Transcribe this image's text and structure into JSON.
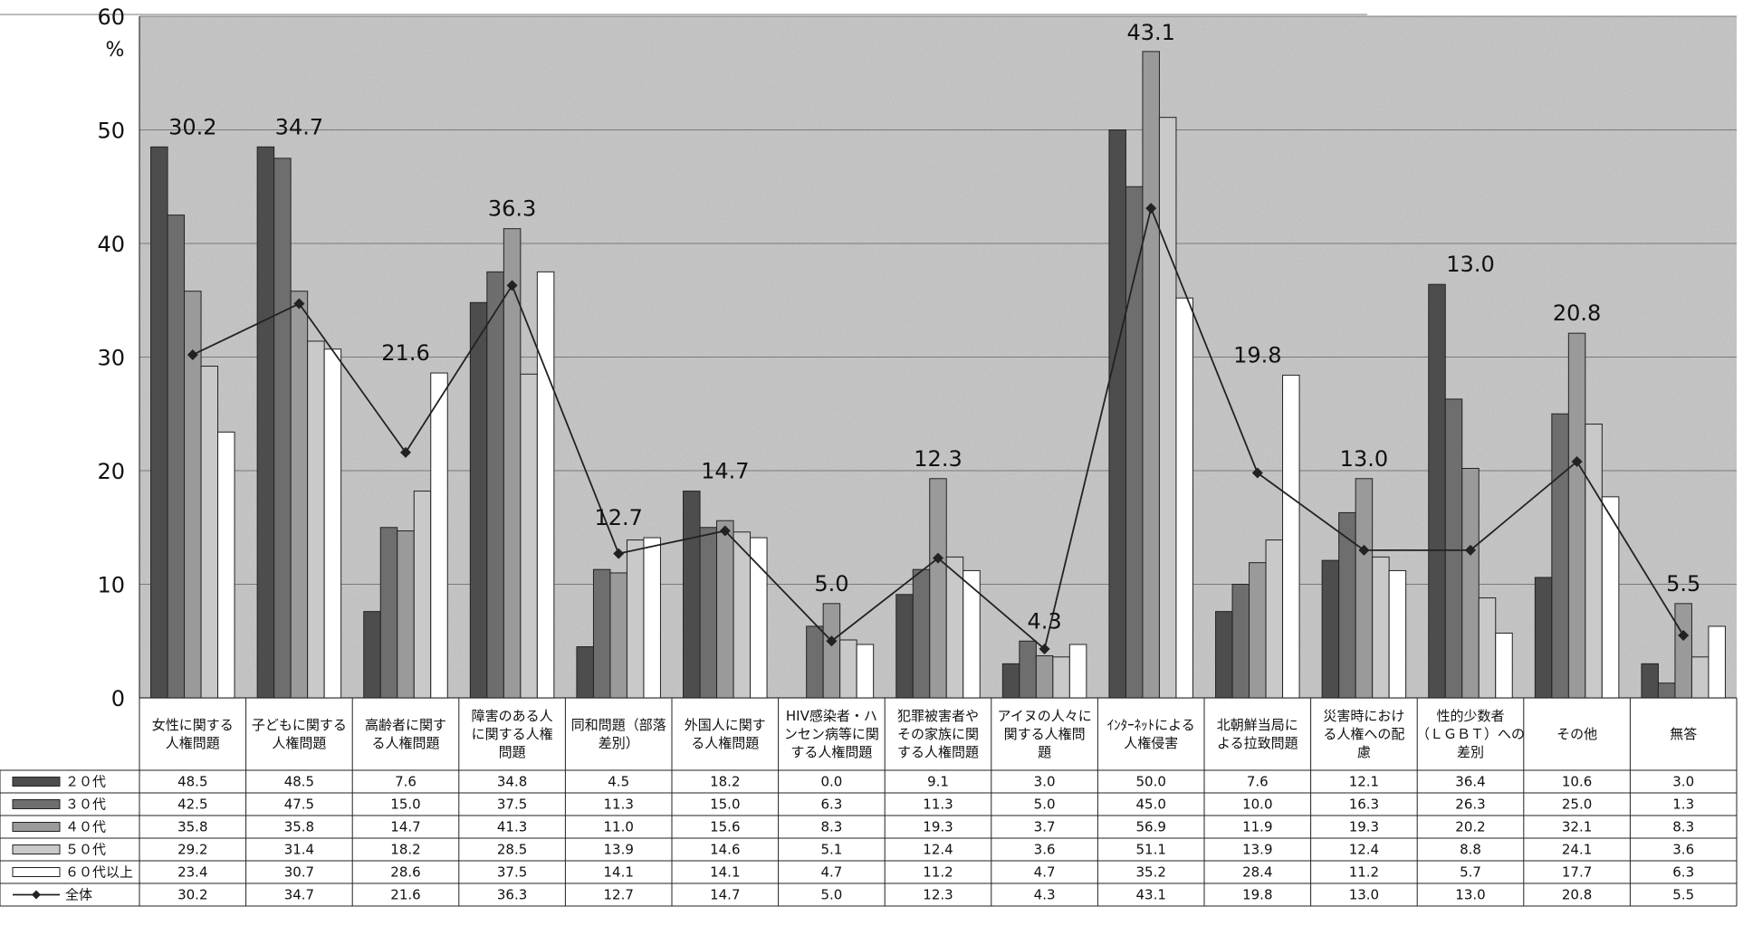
{
  "chart_data": {
    "type": "bar",
    "unit_label": "%",
    "ylim": [
      0,
      60
    ],
    "yticks": [
      0,
      10,
      20,
      30,
      40,
      50,
      60
    ],
    "grid": true,
    "legend_placement": "data-table-left",
    "categories": [
      [
        "女性に関する",
        "人権問題"
      ],
      [
        "子どもに関する",
        "人権問題"
      ],
      [
        "高齢者に関す",
        "る人権問題"
      ],
      [
        "障害のある人",
        "に関する人権",
        "問題"
      ],
      [
        "同和問題（部落",
        "差別）"
      ],
      [
        "外国人に関す",
        "る人権問題"
      ],
      [
        "HIV感染者・ハ",
        "ンセン病等に関",
        "する人権問題"
      ],
      [
        "犯罪被害者や",
        "その家族に関",
        "する人権問題"
      ],
      [
        "アイヌの人々に",
        "関する人権問",
        "題"
      ],
      [
        "ｲﾝﾀｰﾈｯﾄによる",
        "人権侵害"
      ],
      [
        "北朝鮮当局に",
        "よる拉致問題"
      ],
      [
        "災害時におけ",
        "る人権への配",
        "慮"
      ],
      [
        "性的少数者",
        "（ＬＧＢＴ）への",
        "差別"
      ],
      [
        "その他"
      ],
      [
        "無答"
      ]
    ],
    "series": [
      {
        "name": "２０代",
        "color": "#4d4d4d",
        "values": [
          48.5,
          48.5,
          7.6,
          34.8,
          4.5,
          18.2,
          0.0,
          9.1,
          3.0,
          50.0,
          7.6,
          12.1,
          36.4,
          10.6,
          3.0
        ]
      },
      {
        "name": "３０代",
        "color": "#6e6e6e",
        "values": [
          42.5,
          47.5,
          15.0,
          37.5,
          11.3,
          15.0,
          6.3,
          11.3,
          5.0,
          45.0,
          10.0,
          16.3,
          26.3,
          25.0,
          1.3
        ]
      },
      {
        "name": "４０代",
        "color": "#9a9a9a",
        "values": [
          35.8,
          35.8,
          14.7,
          41.3,
          11.0,
          15.6,
          8.3,
          19.3,
          3.7,
          56.9,
          11.9,
          19.3,
          20.2,
          32.1,
          8.3
        ]
      },
      {
        "name": "５０代",
        "color": "#c9c9c9",
        "values": [
          29.2,
          31.4,
          18.2,
          28.5,
          13.9,
          14.6,
          5.1,
          12.4,
          3.6,
          51.1,
          13.9,
          12.4,
          8.8,
          24.1,
          3.6
        ]
      },
      {
        "name": "６０代以上",
        "color": "#ffffff",
        "values": [
          23.4,
          30.7,
          28.6,
          37.5,
          14.1,
          14.1,
          4.7,
          11.2,
          4.7,
          35.2,
          28.4,
          11.2,
          5.7,
          17.7,
          6.3
        ]
      }
    ],
    "line_series": {
      "name": "全体",
      "color": "#222222",
      "values": [
        30.2,
        34.7,
        21.6,
        36.3,
        12.7,
        14.7,
        5.0,
        12.3,
        4.3,
        43.1,
        19.8,
        13.0,
        13.0,
        20.8,
        5.5
      ]
    }
  }
}
